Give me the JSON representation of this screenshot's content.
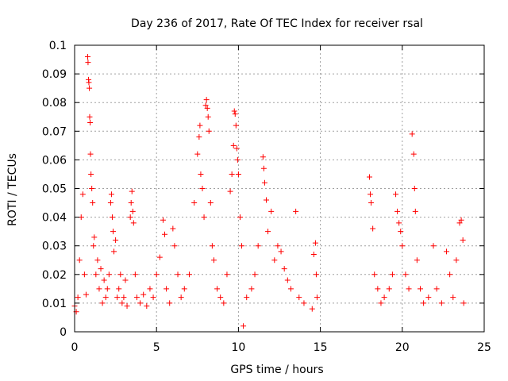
{
  "chart_data": {
    "type": "scatter",
    "title": "Day 236 of 2017, Rate Of TEC Index for receiver rsal",
    "xlabel": "GPS time / hours",
    "ylabel": "ROTI / TECUs",
    "xlim": [
      0,
      25
    ],
    "ylim": [
      0,
      0.1
    ],
    "x_ticks": [
      0,
      5,
      10,
      15,
      20,
      25
    ],
    "x_tick_labels": [
      "0",
      "5",
      "10",
      "15",
      "20",
      "25"
    ],
    "y_ticks": [
      0,
      0.01,
      0.02,
      0.03,
      0.04,
      0.05,
      0.06,
      0.07,
      0.08,
      0.09,
      0.1
    ],
    "y_tick_labels": [
      "0",
      "0.01",
      "0.02",
      "0.03",
      "0.04",
      "0.05",
      "0.06",
      "0.07",
      "0.08",
      "0.09",
      "0.1"
    ],
    "grid": true,
    "marker": "+",
    "marker_color": "#ff0000",
    "series": [
      {
        "name": "ROTI",
        "points": [
          [
            0.0,
            0.009
          ],
          [
            0.1,
            0.007
          ],
          [
            0.2,
            0.012
          ],
          [
            0.3,
            0.025
          ],
          [
            0.4,
            0.04
          ],
          [
            0.5,
            0.048
          ],
          [
            0.6,
            0.02
          ],
          [
            0.7,
            0.013
          ],
          [
            0.8,
            0.096
          ],
          [
            0.82,
            0.094
          ],
          [
            0.85,
            0.088
          ],
          [
            0.87,
            0.087
          ],
          [
            0.9,
            0.085
          ],
          [
            0.92,
            0.075
          ],
          [
            0.95,
            0.073
          ],
          [
            0.97,
            0.062
          ],
          [
            1.0,
            0.055
          ],
          [
            1.05,
            0.05
          ],
          [
            1.1,
            0.045
          ],
          [
            1.15,
            0.03
          ],
          [
            1.2,
            0.033
          ],
          [
            1.3,
            0.02
          ],
          [
            1.4,
            0.025
          ],
          [
            1.5,
            0.015
          ],
          [
            1.6,
            0.022
          ],
          [
            1.7,
            0.01
          ],
          [
            1.8,
            0.018
          ],
          [
            1.9,
            0.012
          ],
          [
            2.0,
            0.015
          ],
          [
            2.1,
            0.02
          ],
          [
            2.2,
            0.045
          ],
          [
            2.25,
            0.048
          ],
          [
            2.3,
            0.04
          ],
          [
            2.35,
            0.035
          ],
          [
            2.4,
            0.028
          ],
          [
            2.5,
            0.032
          ],
          [
            2.6,
            0.012
          ],
          [
            2.7,
            0.015
          ],
          [
            2.8,
            0.02
          ],
          [
            2.9,
            0.01
          ],
          [
            3.0,
            0.012
          ],
          [
            3.1,
            0.018
          ],
          [
            3.2,
            0.009
          ],
          [
            3.4,
            0.04
          ],
          [
            3.45,
            0.045
          ],
          [
            3.5,
            0.049
          ],
          [
            3.55,
            0.042
          ],
          [
            3.6,
            0.038
          ],
          [
            3.7,
            0.02
          ],
          [
            3.8,
            0.012
          ],
          [
            4.0,
            0.01
          ],
          [
            4.2,
            0.013
          ],
          [
            4.4,
            0.009
          ],
          [
            4.6,
            0.015
          ],
          [
            4.8,
            0.012
          ],
          [
            5.0,
            0.02
          ],
          [
            5.2,
            0.026
          ],
          [
            5.4,
            0.039
          ],
          [
            5.5,
            0.034
          ],
          [
            5.6,
            0.015
          ],
          [
            5.8,
            0.01
          ],
          [
            6.0,
            0.036
          ],
          [
            6.1,
            0.03
          ],
          [
            6.3,
            0.02
          ],
          [
            6.5,
            0.012
          ],
          [
            6.7,
            0.015
          ],
          [
            7.0,
            0.02
          ],
          [
            7.3,
            0.045
          ],
          [
            7.5,
            0.062
          ],
          [
            7.6,
            0.068
          ],
          [
            7.65,
            0.072
          ],
          [
            7.7,
            0.055
          ],
          [
            7.8,
            0.05
          ],
          [
            7.9,
            0.04
          ],
          [
            8.0,
            0.079
          ],
          [
            8.05,
            0.081
          ],
          [
            8.1,
            0.078
          ],
          [
            8.15,
            0.075
          ],
          [
            8.2,
            0.07
          ],
          [
            8.3,
            0.045
          ],
          [
            8.4,
            0.03
          ],
          [
            8.5,
            0.025
          ],
          [
            8.7,
            0.015
          ],
          [
            8.9,
            0.012
          ],
          [
            9.1,
            0.01
          ],
          [
            9.3,
            0.02
          ],
          [
            9.5,
            0.049
          ],
          [
            9.6,
            0.055
          ],
          [
            9.7,
            0.065
          ],
          [
            9.75,
            0.077
          ],
          [
            9.8,
            0.076
          ],
          [
            9.85,
            0.072
          ],
          [
            9.9,
            0.064
          ],
          [
            9.95,
            0.06
          ],
          [
            10.0,
            0.055
          ],
          [
            10.1,
            0.04
          ],
          [
            10.2,
            0.03
          ],
          [
            10.3,
            0.002
          ],
          [
            10.5,
            0.012
          ],
          [
            10.8,
            0.015
          ],
          [
            11.0,
            0.02
          ],
          [
            11.2,
            0.03
          ],
          [
            11.5,
            0.061
          ],
          [
            11.55,
            0.057
          ],
          [
            11.6,
            0.052
          ],
          [
            11.7,
            0.046
          ],
          [
            11.8,
            0.035
          ],
          [
            12.0,
            0.042
          ],
          [
            12.2,
            0.025
          ],
          [
            12.4,
            0.03
          ],
          [
            12.6,
            0.028
          ],
          [
            12.8,
            0.022
          ],
          [
            13.0,
            0.018
          ],
          [
            13.2,
            0.015
          ],
          [
            13.5,
            0.042
          ],
          [
            13.7,
            0.012
          ],
          [
            14.0,
            0.01
          ],
          [
            14.5,
            0.008
          ],
          [
            14.6,
            0.027
          ],
          [
            14.7,
            0.031
          ],
          [
            14.75,
            0.02
          ],
          [
            14.8,
            0.012
          ],
          [
            18.0,
            0.054
          ],
          [
            18.05,
            0.048
          ],
          [
            18.1,
            0.045
          ],
          [
            18.2,
            0.036
          ],
          [
            18.3,
            0.02
          ],
          [
            18.5,
            0.015
          ],
          [
            18.7,
            0.01
          ],
          [
            18.9,
            0.012
          ],
          [
            19.2,
            0.015
          ],
          [
            19.4,
            0.02
          ],
          [
            19.6,
            0.048
          ],
          [
            19.7,
            0.042
          ],
          [
            19.8,
            0.038
          ],
          [
            19.9,
            0.035
          ],
          [
            20.0,
            0.03
          ],
          [
            20.2,
            0.02
          ],
          [
            20.4,
            0.015
          ],
          [
            20.6,
            0.069
          ],
          [
            20.7,
            0.062
          ],
          [
            20.75,
            0.05
          ],
          [
            20.8,
            0.042
          ],
          [
            20.9,
            0.025
          ],
          [
            21.1,
            0.015
          ],
          [
            21.3,
            0.01
          ],
          [
            21.6,
            0.012
          ],
          [
            21.9,
            0.03
          ],
          [
            22.1,
            0.015
          ],
          [
            22.4,
            0.01
          ],
          [
            22.7,
            0.028
          ],
          [
            22.9,
            0.02
          ],
          [
            23.1,
            0.012
          ],
          [
            23.3,
            0.025
          ],
          [
            23.5,
            0.038
          ],
          [
            23.6,
            0.039
          ],
          [
            23.7,
            0.032
          ],
          [
            23.75,
            0.01
          ]
        ]
      }
    ]
  }
}
